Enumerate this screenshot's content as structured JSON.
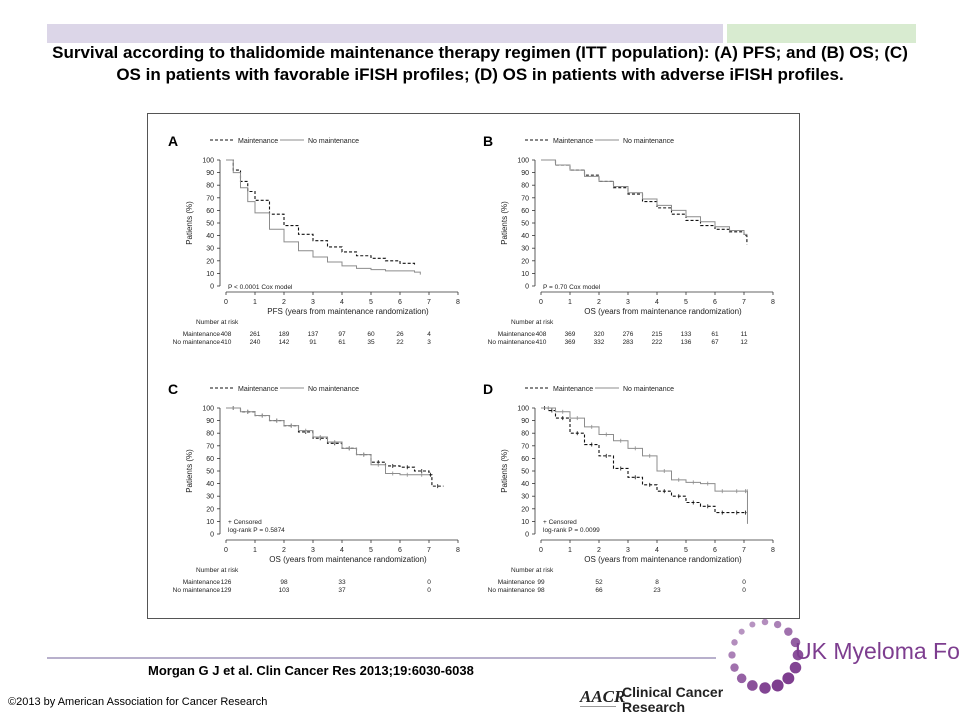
{
  "title": "Survival according to thalidomide maintenance therapy regimen (ITT population): (A) PFS; and (B) OS; (C) OS in patients with favorable iFISH profiles; (D) OS in patients with adverse iFISH profiles.",
  "citation": "Morgan G J et al. Clin Cancer Res 2013;19:6030-6038",
  "copyright": "©2013 by American Association for Cancer Research",
  "logos": {
    "ukmf_text": "UK Myeloma Forum",
    "ccr_line1": "Clinical Cancer",
    "ccr_line2": "Research",
    "ukmf_color": "#7d3d8f",
    "ccr_color": "#9a1c1c"
  },
  "colors": {
    "maintenance": "#111111",
    "no_maintenance": "#8c8c8c",
    "bar_purple": "#dcd6e8",
    "bar_green": "#d8ebd0"
  },
  "chart_data": [
    {
      "type": "line",
      "panel": "A",
      "xlabel": "PFS (years from maintenance randomization)",
      "ylabel": "Patients (%)",
      "xlim": [
        0,
        8
      ],
      "ylim": [
        0,
        100
      ],
      "xticks": [
        "0",
        "1",
        "2",
        "3",
        "4",
        "5",
        "6",
        "7",
        "8"
      ],
      "yticks": [
        "0",
        "10",
        "20",
        "30",
        "40",
        "50",
        "60",
        "70",
        "80",
        "90",
        "100"
      ],
      "legend": [
        "Maintenance",
        "No maintenance"
      ],
      "stat": "P < 0.0001 Cox model",
      "series": [
        {
          "name": "Maintenance",
          "style": "dashed",
          "x": [
            0,
            0.25,
            0.5,
            0.75,
            1,
            1.5,
            2,
            2.5,
            3,
            3.5,
            4,
            4.5,
            5,
            5.5,
            6,
            6.5
          ],
          "y": [
            100,
            92,
            83,
            75,
            68,
            57,
            48,
            41,
            36,
            31,
            27,
            24,
            22,
            20,
            18,
            17
          ]
        },
        {
          "name": "No maintenance",
          "style": "solid",
          "x": [
            0,
            0.25,
            0.5,
            0.75,
            1,
            1.5,
            2,
            2.5,
            3,
            3.5,
            4,
            4.5,
            5,
            5.5,
            6,
            6.5,
            6.7
          ],
          "y": [
            100,
            90,
            78,
            67,
            58,
            45,
            35,
            28,
            23,
            19,
            16,
            14,
            13,
            12,
            12,
            11,
            9
          ]
        }
      ],
      "risk_table": {
        "header": "Number at risk",
        "rows": [
          {
            "label": "Maintenance",
            "values": [
              "408",
              "261",
              "189",
              "137",
              "97",
              "60",
              "26",
              "4"
            ]
          },
          {
            "label": "No maintenance",
            "values": [
              "410",
              "240",
              "142",
              "91",
              "61",
              "35",
              "22",
              "3"
            ]
          }
        ]
      }
    },
    {
      "type": "line",
      "panel": "B",
      "xlabel": "OS (years from maintenance randomization)",
      "ylabel": "Patients (%)",
      "xlim": [
        0,
        8
      ],
      "ylim": [
        0,
        100
      ],
      "xticks": [
        "0",
        "1",
        "2",
        "3",
        "4",
        "5",
        "6",
        "7",
        "8"
      ],
      "yticks": [
        "0",
        "10",
        "20",
        "30",
        "40",
        "50",
        "60",
        "70",
        "80",
        "90",
        "100"
      ],
      "legend": [
        "Maintenance",
        "No maintenance"
      ],
      "stat": "P = 0.70 Cox model",
      "series": [
        {
          "name": "Maintenance",
          "style": "dashed",
          "x": [
            0,
            0.5,
            1,
            1.5,
            2,
            2.5,
            3,
            3.5,
            4,
            4.5,
            5,
            5.5,
            6,
            6.5,
            7,
            7.1
          ],
          "y": [
            100,
            96,
            92,
            88,
            83,
            78,
            73,
            67,
            62,
            57,
            52,
            48,
            45,
            43,
            40,
            33
          ]
        },
        {
          "name": "No maintenance",
          "style": "solid",
          "x": [
            0,
            0.5,
            1,
            1.5,
            2,
            2.5,
            3,
            3.5,
            4,
            4.5,
            5,
            5.5,
            6,
            6.5,
            7,
            7.1
          ],
          "y": [
            100,
            96,
            92,
            87,
            83,
            79,
            74,
            69,
            64,
            60,
            55,
            51,
            47,
            44,
            41,
            40
          ]
        }
      ],
      "risk_table": {
        "header": "Number at risk",
        "rows": [
          {
            "label": "Maintenance",
            "values": [
              "408",
              "369",
              "320",
              "276",
              "215",
              "133",
              "61",
              "11"
            ]
          },
          {
            "label": "No maintenance",
            "values": [
              "410",
              "369",
              "332",
              "283",
              "222",
              "136",
              "67",
              "12"
            ]
          }
        ]
      }
    },
    {
      "type": "line",
      "panel": "C",
      "xlabel": "OS (years from maintenance randomization)",
      "ylabel": "Patients (%)",
      "xlim": [
        0,
        8
      ],
      "ylim": [
        0,
        100
      ],
      "xticks": [
        "0",
        "1",
        "2",
        "3",
        "4",
        "5",
        "6",
        "7",
        "8"
      ],
      "yticks": [
        "0",
        "10",
        "20",
        "30",
        "40",
        "50",
        "60",
        "70",
        "80",
        "90",
        "100"
      ],
      "legend": [
        "Maintenance",
        "No maintenance"
      ],
      "stat_lines": [
        "+ Censored",
        "log-rank P = 0.5874"
      ],
      "series": [
        {
          "name": "Maintenance",
          "style": "dashed",
          "censored": true,
          "x": [
            0,
            0.5,
            1,
            1.5,
            2,
            2.5,
            3,
            3.5,
            4,
            4.5,
            5,
            5.5,
            6,
            6.5,
            7,
            7.1,
            7.5
          ],
          "y": [
            100,
            97,
            94,
            90,
            86,
            81,
            76,
            72,
            68,
            63,
            57,
            54,
            53,
            50,
            47,
            38,
            38
          ]
        },
        {
          "name": "No maintenance",
          "style": "solid",
          "censored": true,
          "x": [
            0,
            0.5,
            1,
            1.5,
            2,
            2.5,
            3,
            3.5,
            4,
            4.5,
            5,
            5.5,
            6,
            6.5,
            7
          ],
          "y": [
            100,
            97,
            94,
            90,
            86,
            82,
            77,
            73,
            68,
            63,
            55,
            48,
            47,
            47,
            47
          ]
        }
      ],
      "risk_table": {
        "header": "Number at risk",
        "rows": [
          {
            "label": "Maintenance",
            "values": [
              "126",
              "",
              "98",
              "",
              "33",
              "",
              "",
              "0"
            ]
          },
          {
            "label": "No maintenance",
            "values": [
              "129",
              "",
              "103",
              "",
              "37",
              "",
              "",
              "0"
            ]
          }
        ]
      }
    },
    {
      "type": "line",
      "panel": "D",
      "xlabel": "OS (years from maintenance randomization)",
      "ylabel": "Patients (%)",
      "xlim": [
        0,
        8
      ],
      "ylim": [
        0,
        100
      ],
      "xticks": [
        "0",
        "1",
        "2",
        "3",
        "4",
        "5",
        "6",
        "7",
        "8"
      ],
      "yticks": [
        "0",
        "10",
        "20",
        "30",
        "40",
        "50",
        "60",
        "70",
        "80",
        "90",
        "100"
      ],
      "legend": [
        "Maintenance",
        "No maintenance"
      ],
      "stat_lines": [
        "+ Censored",
        "log-rank P = 0.0099"
      ],
      "series": [
        {
          "name": "Maintenance",
          "style": "dashed",
          "censored": true,
          "x": [
            0,
            0.25,
            0.5,
            1,
            1.5,
            2,
            2.5,
            3,
            3.5,
            4,
            4.5,
            5,
            5.5,
            6,
            6.5,
            7,
            7.1
          ],
          "y": [
            100,
            98,
            92,
            80,
            71,
            62,
            52,
            45,
            39,
            34,
            30,
            25,
            22,
            17,
            17,
            17,
            17
          ]
        },
        {
          "name": "No maintenance",
          "style": "solid",
          "censored": true,
          "x": [
            0,
            0.5,
            1,
            1.5,
            2,
            2.5,
            3,
            3.5,
            4,
            4.5,
            5,
            5.5,
            6,
            6.5,
            7,
            7.1,
            7.12
          ],
          "y": [
            100,
            97,
            92,
            85,
            79,
            74,
            68,
            62,
            50,
            43,
            41,
            40,
            34,
            34,
            34,
            34,
            8
          ]
        }
      ],
      "risk_table": {
        "header": "Number at risk",
        "rows": [
          {
            "label": "Maintenance",
            "values": [
              "99",
              "",
              "52",
              "",
              "8",
              "",
              "",
              "0"
            ]
          },
          {
            "label": "No maintenance",
            "values": [
              "98",
              "",
              "66",
              "",
              "23",
              "",
              "",
              "0"
            ]
          }
        ]
      }
    }
  ]
}
